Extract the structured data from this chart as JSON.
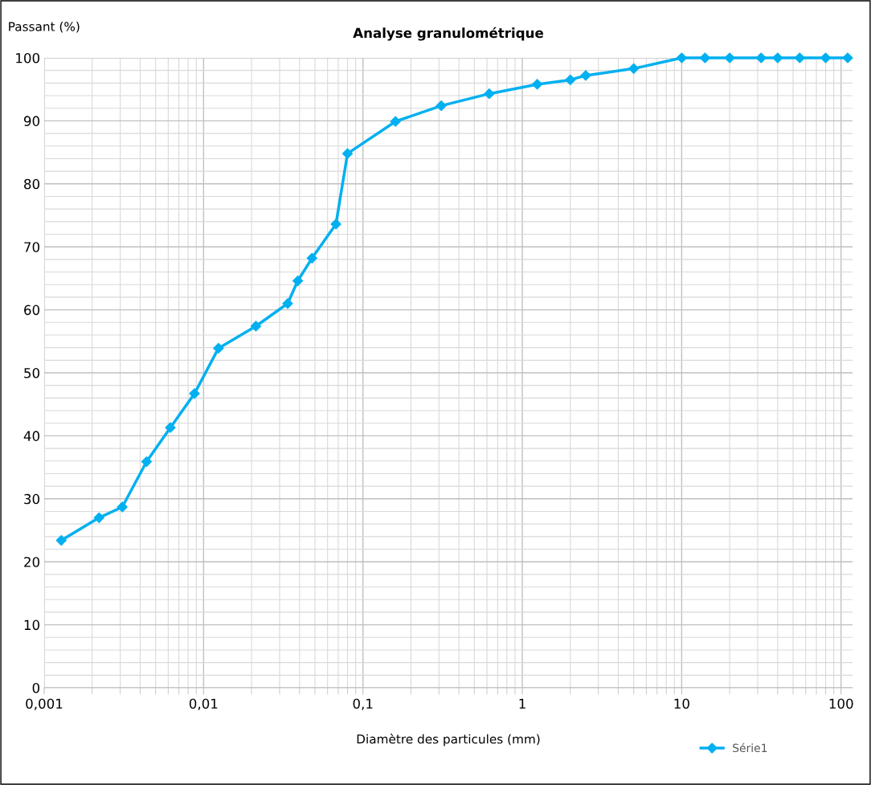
{
  "chart_data": {
    "type": "line",
    "title": "Analyse granulométrique",
    "xlabel": "Diamètre des particules (mm)",
    "ylabel": "Passant (%)",
    "log": "x",
    "grid": true,
    "legend": "bottom right",
    "marker": "diamond",
    "line_style": "solid",
    "xlim": [
      0.001,
      118
    ],
    "xticks": [
      {
        "value": 0.001,
        "label": "0,001"
      },
      {
        "value": 0.01,
        "label": "0,01"
      },
      {
        "value": 0.1,
        "label": "0,1"
      },
      {
        "value": 1,
        "label": "1"
      },
      {
        "value": 10,
        "label": "10"
      },
      {
        "value": 100,
        "label": "100"
      }
    ],
    "ylim": [
      0,
      100
    ],
    "yticks": [
      0,
      10,
      20,
      30,
      40,
      50,
      60,
      70,
      80,
      90,
      100
    ],
    "x": [
      0.00128,
      0.00221,
      0.00309,
      0.00439,
      0.00619,
      0.00877,
      0.0124,
      0.0213,
      0.0337,
      0.039,
      0.0479,
      0.0677,
      0.08,
      0.16,
      0.31,
      0.62,
      1.24,
      2,
      2.5,
      5,
      10,
      14,
      20,
      31.5,
      40,
      55,
      80,
      110
    ],
    "series": [
      {
        "name": "Série1",
        "color": "#00b0f0",
        "values": [
          23.4,
          27.0,
          28.7,
          35.9,
          41.3,
          46.7,
          53.9,
          57.4,
          61.0,
          64.6,
          68.2,
          73.6,
          84.8,
          89.9,
          92.4,
          94.3,
          95.8,
          96.5,
          97.2,
          98.3,
          100,
          100,
          100,
          100,
          100,
          100,
          100,
          100
        ]
      }
    ]
  }
}
